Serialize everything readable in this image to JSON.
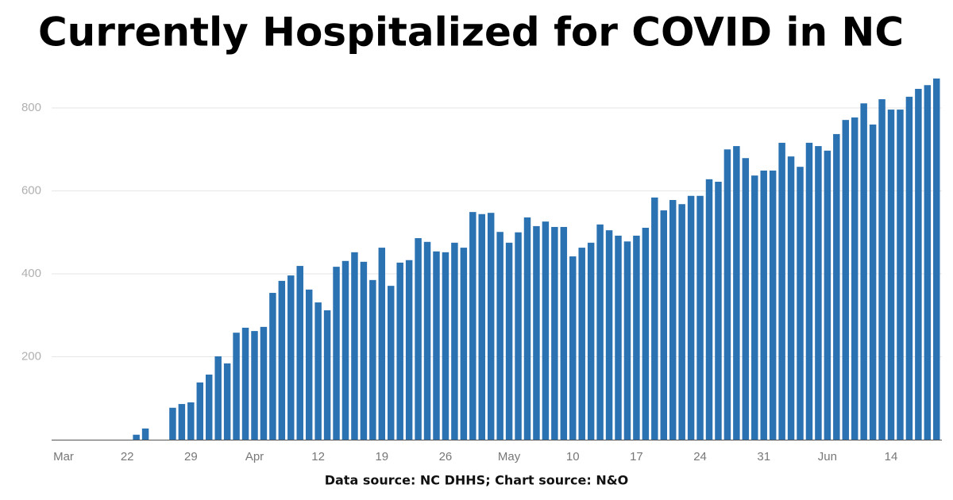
{
  "chart_data": {
    "type": "bar",
    "title": "Currently Hospitalized for COVID in NC",
    "source": "Data source: NC DHHS; Chart source: N&O",
    "color": "#2b72b2",
    "grid": true,
    "ylim": [
      0,
      880
    ],
    "yticks": [
      200,
      400,
      600,
      800
    ],
    "categories": [
      "Mar",
      null,
      null,
      null,
      null,
      null,
      null,
      "22",
      null,
      null,
      null,
      null,
      null,
      null,
      "29",
      null,
      null,
      null,
      null,
      null,
      null,
      "Apr",
      null,
      null,
      null,
      null,
      null,
      null,
      "12",
      null,
      null,
      null,
      null,
      null,
      null,
      "19",
      null,
      null,
      null,
      null,
      null,
      null,
      "26",
      null,
      null,
      null,
      null,
      null,
      null,
      "May",
      null,
      null,
      null,
      null,
      null,
      null,
      "10",
      null,
      null,
      null,
      null,
      null,
      null,
      "17",
      null,
      null,
      null,
      null,
      null,
      null,
      "24",
      null,
      null,
      null,
      null,
      null,
      null,
      "31",
      null,
      null,
      null,
      null,
      null,
      null,
      "Jun",
      null,
      null,
      null,
      null,
      null,
      null,
      "14",
      null,
      null,
      null,
      null,
      null
    ],
    "values": [
      null,
      null,
      null,
      null,
      null,
      null,
      null,
      null,
      12,
      27,
      null,
      null,
      77,
      86,
      90,
      138,
      157,
      201,
      184,
      258,
      270,
      262,
      272,
      354,
      383,
      396,
      419,
      362,
      331,
      312,
      417,
      431,
      452,
      429,
      385,
      463,
      371,
      427,
      433,
      486,
      477,
      454,
      452,
      475,
      463,
      549,
      544,
      547,
      501,
      475,
      500,
      536,
      515,
      526,
      513,
      513,
      442,
      463,
      475,
      519,
      505,
      492,
      478,
      492,
      511,
      584,
      553,
      578,
      568,
      588,
      588,
      628,
      622,
      700,
      708,
      679,
      637,
      649,
      649,
      716,
      683,
      658,
      716,
      708,
      697,
      737,
      771,
      777,
      811,
      760,
      821,
      796,
      796,
      827,
      846,
      855,
      871
    ]
  }
}
